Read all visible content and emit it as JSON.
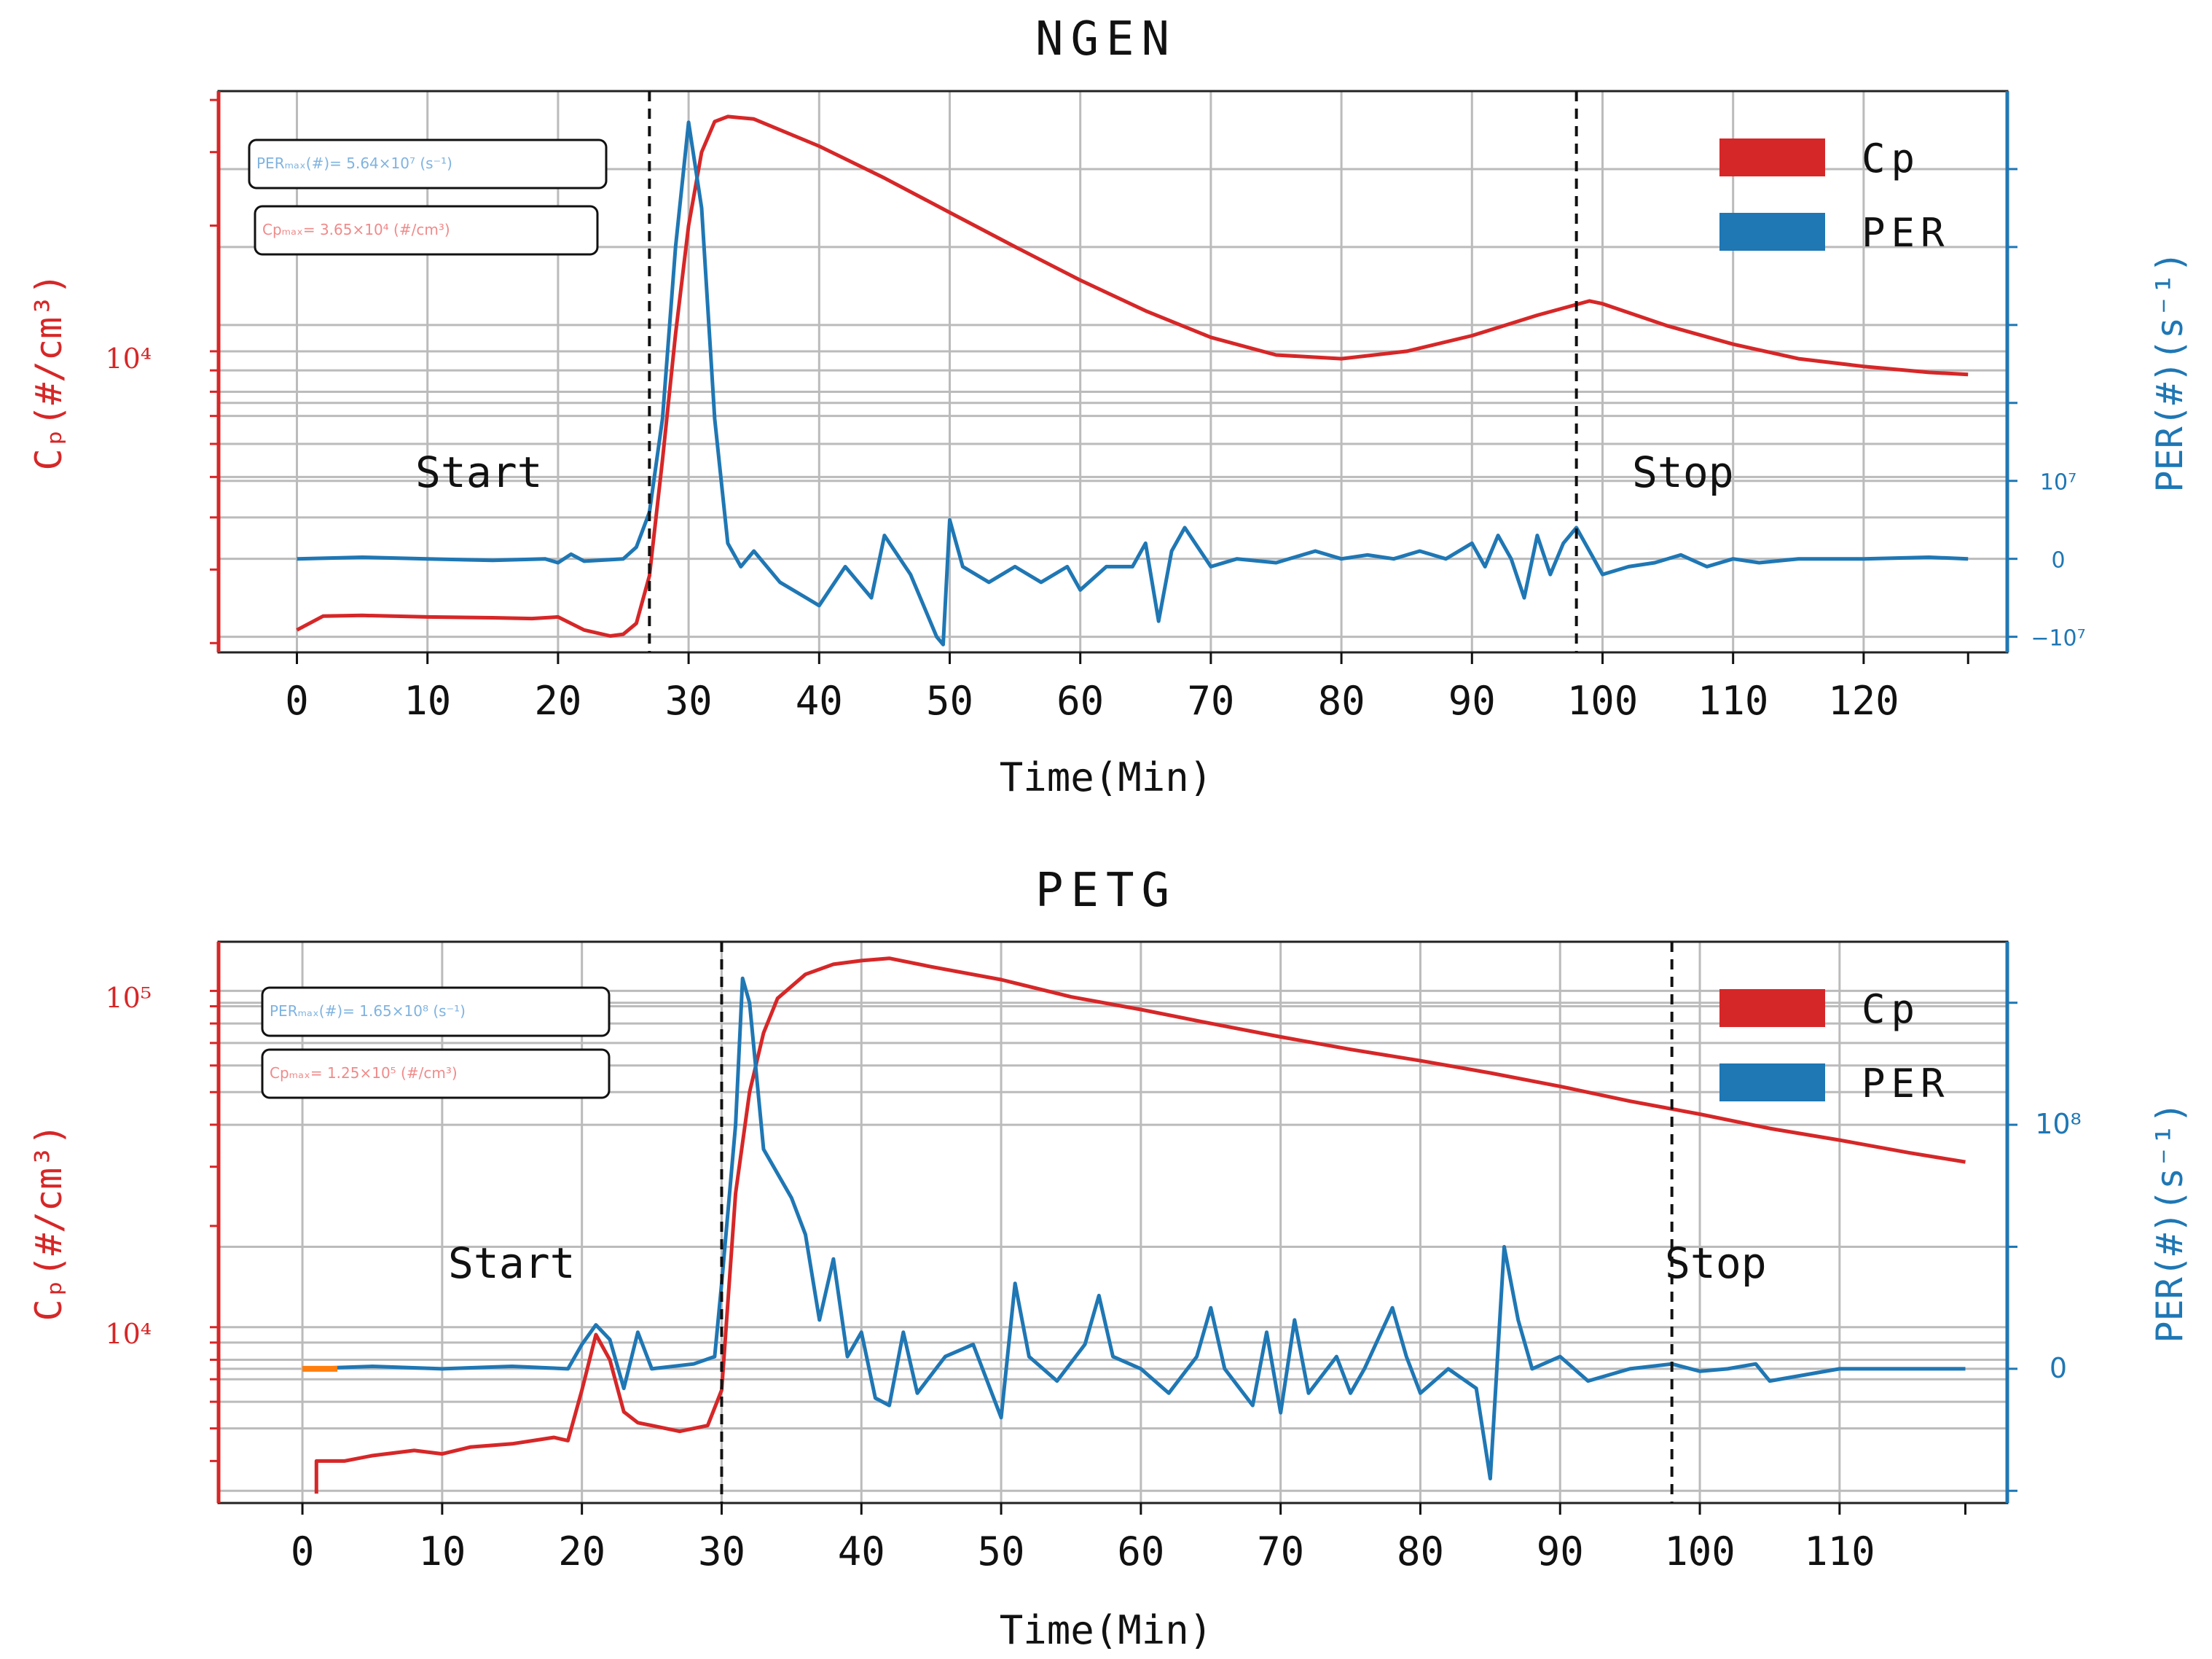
{
  "chart_data": [
    {
      "type": "line",
      "title": "NGEN",
      "xlabel": "Time(Min)",
      "ylabel_left": "Cₚ(#/cm³)",
      "ylabel_right": "PER(#)(s⁻¹)",
      "xlim": [
        -6,
        131
      ],
      "x_ticks": [
        0,
        10,
        20,
        30,
        40,
        50,
        60,
        70,
        80,
        90,
        100,
        110,
        120
      ],
      "left_axis_label": "10⁴",
      "right_ticks": [
        {
          "label": "10⁷",
          "value": 10000000
        },
        {
          "label": "0",
          "value": 0
        },
        {
          "label": "−10⁷",
          "value": -10000000
        }
      ],
      "legend": [
        "Cp",
        "PER"
      ],
      "annotations": [
        "Start",
        "Stop"
      ],
      "start_min": 27,
      "stop_min": 98,
      "box_per": "PERₘₐₓ(#)= 5.64×10⁷ (s⁻¹)",
      "box_cp": "Cpₘₐₓ= 3.65×10⁴ (#/cm³)",
      "series": [
        {
          "name": "Cp",
          "color": "#d62728",
          "x": [
            0,
            2,
            5,
            10,
            15,
            18,
            20,
            22,
            24,
            25,
            26,
            27,
            28,
            29,
            30,
            31,
            32,
            33,
            35,
            40,
            45,
            50,
            55,
            60,
            65,
            70,
            75,
            80,
            85,
            90,
            95,
            99,
            100,
            105,
            110,
            115,
            120,
            125,
            128
          ],
          "values": [
            2150,
            2320,
            2330,
            2310,
            2300,
            2290,
            2310,
            2150,
            2080,
            2100,
            2230,
            2900,
            5500,
            11000,
            20000,
            30000,
            35500,
            36500,
            36000,
            31000,
            26000,
            21500,
            17800,
            14800,
            12500,
            10800,
            9800,
            9600,
            10000,
            10900,
            12200,
            13200,
            13000,
            11500,
            10400,
            9600,
            9200,
            8900,
            8800
          ]
        },
        {
          "name": "PER",
          "color": "#1f77b4",
          "x": [
            0,
            5,
            10,
            15,
            19,
            20,
            21,
            22,
            25,
            26,
            27,
            28,
            29,
            30,
            31,
            32,
            33,
            34,
            35,
            37,
            39,
            40,
            42,
            44,
            45,
            47,
            49,
            49.5,
            50,
            51,
            53,
            55,
            57,
            59,
            60,
            62,
            64,
            65,
            66,
            67,
            68,
            70,
            72,
            75,
            78,
            80,
            82,
            84,
            86,
            88,
            90,
            91,
            92,
            93,
            94,
            95,
            96,
            97,
            98,
            99,
            100,
            102,
            104,
            106,
            108,
            110,
            112,
            115,
            120,
            125,
            128
          ],
          "values": [
            0,
            200000,
            0,
            -200000,
            0,
            -500000,
            600000,
            -300000,
            0,
            1500000,
            6000000,
            18000000,
            40000000,
            56000000,
            45000000,
            18000000,
            2000000,
            -1000000,
            1000000,
            -3000000,
            -5000000,
            -6000000,
            -1000000,
            -5000000,
            3000000,
            -2000000,
            -10000000,
            -11000000,
            5000000,
            -1000000,
            -3000000,
            -1000000,
            -3000000,
            -1000000,
            -4000000,
            -1000000,
            -1000000,
            2000000,
            -8000000,
            1000000,
            4000000,
            -1000000,
            0,
            -500000,
            1000000,
            0,
            500000,
            0,
            1000000,
            0,
            2000000,
            -1000000,
            3000000,
            0,
            -5000000,
            3000000,
            -2000000,
            2000000,
            4000000,
            1000000,
            -2000000,
            -1000000,
            -500000,
            500000,
            -1000000,
            0,
            -500000,
            0,
            0,
            200000,
            0
          ]
        }
      ]
    },
    {
      "type": "line",
      "title": "PETG",
      "xlabel": "Time(Min)",
      "ylabel_left": "Cₚ(#/cm³)",
      "ylabel_right": "PER(#)(s⁻¹)",
      "xlim": [
        -6,
        122
      ],
      "x_ticks": [
        0,
        10,
        20,
        30,
        40,
        50,
        60,
        70,
        80,
        90,
        100,
        110
      ],
      "left_axis_labels": [
        {
          "label": "10⁵",
          "value": 100000
        },
        {
          "label": "10⁴",
          "value": 10000
        }
      ],
      "right_ticks": [
        {
          "label": "10⁸",
          "value": 100000000
        },
        {
          "label": "0",
          "value": 0
        }
      ],
      "legend": [
        "Cp",
        "PER"
      ],
      "annotations": [
        "Start",
        "Stop"
      ],
      "start_min": 30,
      "stop_min": 98,
      "box_per": "PERₘₐₓ(#)= 1.65×10⁸ (s⁻¹)",
      "box_cp": "Cpₘₐₓ= 1.25×10⁵ (#/cm³)",
      "series": [
        {
          "name": "Cp",
          "color": "#d62728",
          "x": [
            1,
            1,
            3,
            5,
            8,
            10,
            12,
            15,
            18,
            19,
            20,
            21,
            22,
            23,
            24,
            25,
            27,
            29,
            30,
            31,
            32,
            33,
            34,
            36,
            38,
            40,
            42,
            45,
            50,
            55,
            60,
            65,
            70,
            75,
            80,
            85,
            90,
            95,
            100,
            105,
            110,
            115,
            119
          ],
          "values": [
            3200,
            4000,
            4000,
            4150,
            4300,
            4200,
            4400,
            4500,
            4700,
            4600,
            6500,
            9500,
            8000,
            5600,
            5200,
            5100,
            4900,
            5100,
            6500,
            25000,
            50000,
            75000,
            95000,
            112000,
            120000,
            123000,
            125000,
            118000,
            108000,
            96000,
            88000,
            80000,
            73000,
            67000,
            62000,
            57000,
            52000,
            47000,
            43000,
            39000,
            36000,
            33000,
            31000
          ]
        },
        {
          "name": "PER",
          "color": "#1f77b4",
          "x": [
            0,
            5,
            10,
            15,
            19,
            20,
            21,
            22,
            23,
            24,
            25,
            28,
            29.5,
            30,
            31,
            31.5,
            32,
            33,
            35,
            36,
            37,
            38,
            39,
            40,
            41,
            42,
            43,
            44,
            46,
            48,
            50,
            51,
            52,
            54,
            56,
            57,
            58,
            60,
            62,
            64,
            65,
            66,
            68,
            69,
            70,
            71,
            72,
            74,
            75,
            76,
            78,
            79,
            80,
            82,
            84,
            85,
            86,
            87,
            88,
            90,
            92,
            95,
            98,
            100,
            102,
            104,
            105,
            110,
            115,
            119
          ],
          "values": [
            0,
            1000000,
            0,
            1000000,
            0,
            10000000,
            18000000,
            12000000,
            -8000000,
            15000000,
            0,
            2000000,
            5000000,
            35000000,
            100000000,
            160000000,
            150000000,
            90000000,
            70000000,
            55000000,
            20000000,
            45000000,
            5000000,
            15000000,
            -12000000,
            -15000000,
            15000000,
            -10000000,
            5000000,
            10000000,
            -20000000,
            35000000,
            5000000,
            -5000000,
            10000000,
            30000000,
            5000000,
            0,
            -10000000,
            5000000,
            25000000,
            0,
            -15000000,
            15000000,
            -18000000,
            20000000,
            -10000000,
            5000000,
            -10000000,
            0,
            25000000,
            5000000,
            -10000000,
            0,
            -8000000,
            -45000000,
            50000000,
            20000000,
            0,
            5000000,
            -5000000,
            0,
            2000000,
            -1000000,
            0,
            2000000,
            -5000000,
            0,
            0,
            0
          ]
        }
      ]
    }
  ]
}
